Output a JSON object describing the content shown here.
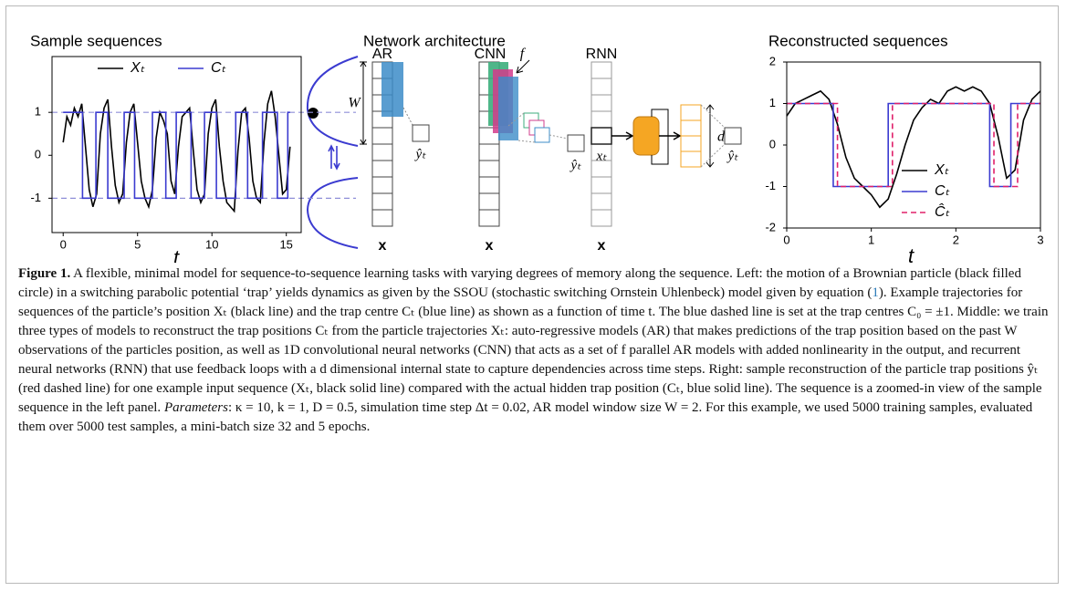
{
  "chart_data": [
    {
      "type": "line",
      "title": "Sample sequences",
      "xlabel": "t",
      "xlim": [
        -0.75,
        16
      ],
      "xticks": [
        0,
        5,
        10,
        15
      ],
      "ylim": [
        -1.8,
        2.3
      ],
      "yticks": [
        -1,
        0,
        1
      ],
      "legend": "top",
      "hlines": [
        1,
        -1
      ],
      "hline_color": "#8f8fd8",
      "series": [
        {
          "name": "Xₜ",
          "color": "#000000",
          "dash": false,
          "x": [
            0,
            0.25,
            0.5,
            0.75,
            1,
            1.25,
            1.5,
            1.75,
            2,
            2.25,
            2.5,
            2.75,
            3,
            3.25,
            3.5,
            3.75,
            4,
            4.25,
            4.5,
            4.75,
            5,
            5.25,
            5.5,
            5.75,
            6,
            6.25,
            6.5,
            6.75,
            7,
            7.25,
            7.5,
            7.75,
            8,
            8.25,
            8.5,
            8.75,
            9,
            9.25,
            9.5,
            9.75,
            10,
            10.25,
            10.5,
            10.75,
            11,
            11.25,
            11.5,
            11.75,
            12,
            12.25,
            12.5,
            12.75,
            13,
            13.25,
            13.5,
            13.75,
            14,
            14.25,
            14.5,
            14.75,
            15,
            15.25
          ],
          "values": [
            0.3,
            0.9,
            0.7,
            1.1,
            0.9,
            1.2,
            0.2,
            -0.8,
            -1.2,
            -0.9,
            0.5,
            1.1,
            1.3,
            0.2,
            -0.7,
            -1.1,
            -0.9,
            0.3,
            1.0,
            1.2,
            0.3,
            -0.6,
            -1.0,
            -1.2,
            -0.8,
            0.4,
            1.0,
            0.8,
            0.5,
            -0.6,
            -0.9,
            0.2,
            0.9,
            1.0,
            1.1,
            0.1,
            -0.8,
            -1.1,
            -0.9,
            0.5,
            1.1,
            1.3,
            0.2,
            -0.6,
            -1.1,
            -1.2,
            -1.3,
            0.1,
            1.0,
            1.1,
            0.4,
            -0.6,
            -1.0,
            -1.1,
            0.3,
            1.2,
            1.5,
            0.9,
            0.0,
            -0.9,
            -0.8,
            0.2
          ]
        },
        {
          "name": "Cₜ",
          "color": "#3b3bd0",
          "dash": false,
          "x": [
            0,
            1.3,
            1.3,
            2.2,
            2.2,
            3.0,
            3.0,
            4.1,
            4.1,
            4.8,
            4.8,
            6.0,
            6.0,
            6.9,
            6.9,
            7.6,
            7.6,
            8.6,
            8.6,
            9.5,
            9.5,
            10.3,
            10.3,
            11.6,
            11.6,
            12.4,
            12.4,
            13.4,
            13.4,
            14.4,
            14.4,
            15.1,
            15.1,
            15.25
          ],
          "values": [
            1,
            1,
            -1,
            -1,
            1,
            1,
            -1,
            -1,
            1,
            1,
            -1,
            -1,
            1,
            1,
            -1,
            -1,
            1,
            1,
            -1,
            -1,
            1,
            1,
            -1,
            -1,
            1,
            1,
            -1,
            -1,
            1,
            1,
            -1,
            -1,
            1,
            1
          ]
        }
      ]
    },
    {
      "type": "line",
      "title": "Reconstructed sequences",
      "xlabel": "t",
      "xlim": [
        0,
        3
      ],
      "xticks": [
        0,
        1,
        2,
        3
      ],
      "ylim": [
        -2,
        2
      ],
      "yticks": [
        -2,
        -1,
        0,
        1,
        2
      ],
      "legend": "lower right",
      "series": [
        {
          "name": "Xₜ",
          "color": "#000000",
          "dash": false,
          "x": [
            0,
            0.1,
            0.2,
            0.3,
            0.4,
            0.5,
            0.6,
            0.7,
            0.8,
            0.9,
            1.0,
            1.1,
            1.2,
            1.3,
            1.4,
            1.5,
            1.6,
            1.7,
            1.8,
            1.9,
            2.0,
            2.1,
            2.2,
            2.3,
            2.4,
            2.5,
            2.6,
            2.7,
            2.8,
            2.9,
            3.0
          ],
          "values": [
            0.7,
            1.0,
            1.1,
            1.2,
            1.3,
            1.1,
            0.5,
            -0.3,
            -0.8,
            -1.0,
            -1.2,
            -1.5,
            -1.3,
            -0.7,
            0.0,
            0.6,
            0.9,
            1.1,
            1.0,
            1.3,
            1.4,
            1.3,
            1.4,
            1.3,
            1.0,
            0.2,
            -0.8,
            -0.6,
            0.6,
            1.1,
            1.3
          ]
        },
        {
          "name": "Cₜ",
          "color": "#3b3bd0",
          "dash": false,
          "x": [
            0,
            0.55,
            0.55,
            1.2,
            1.2,
            2.4,
            2.4,
            2.65,
            2.65,
            3
          ],
          "values": [
            1,
            1,
            -1,
            -1,
            1,
            1,
            -1,
            -1,
            1,
            1
          ]
        },
        {
          "name": "Ĉₜ",
          "color": "#e0206a",
          "dash": true,
          "x": [
            0,
            0.6,
            0.6,
            1.25,
            1.25,
            2.45,
            2.45,
            2.73,
            2.73,
            3
          ],
          "values": [
            1,
            1,
            -1,
            -1,
            1,
            1,
            -1,
            -1,
            1,
            1
          ]
        }
      ]
    }
  ],
  "diagram": {
    "title": "Network architecture",
    "ar": {
      "label": "AR",
      "window": "W",
      "output": "ŷₜ",
      "input": "x"
    },
    "cnn": {
      "label": "CNN",
      "filters": "f",
      "output": "ŷₜ",
      "input": "x"
    },
    "rnn": {
      "label": "RNN",
      "current": "xₜ",
      "state": "d",
      "output": "ŷₜ",
      "input": "x"
    }
  },
  "caption": {
    "segments": [
      "Figure 1.",
      " A flexible, minimal model for sequence-to-sequence learning tasks with varying degrees of memory along the sequence. Left: the motion of a Brownian particle (black filled circle) in a switching parabolic potential ‘trap’ yields dynamics as given by the SSOU (stochastic switching Ornstein Uhlenbeck) model given by equation (",
      "1",
      "). Example trajectories for sequences of the particle’s position Xₜ (black line) and the trap centre Cₜ (blue line) as shown as a function of time t. The blue dashed line is set at the trap centres C₀ = ±1. Middle: we train three types of models to reconstruct the trap positions Cₜ from the particle trajectories Xₜ: auto-regressive models (AR) that makes predictions of the trap position based on the past W observations of the particles position, as well as 1D convolutional neural networks (CNN) that acts as a set of f parallel AR models with added nonlinearity in the output, and recurrent neural networks (RNN) that use feedback loops with a d dimensional internal state to capture dependencies across time steps. Right: sample reconstruction of the particle trap positions ŷₜ (red dashed line) for one example input sequence (Xₜ, black solid line) compared with the actual hidden trap position (Cₜ, blue solid line). The sequence is a zoomed-in view of the sample sequence in the left panel. ",
      "Parameters",
      ": κ = 10, k = 1, D = 0.5, simulation time step Δt = 0.02, AR model window size W = 2. For this example, we used 5000 training samples, evaluated them over 5000 test samples, a mini-batch size 32 and 5 epochs."
    ]
  }
}
